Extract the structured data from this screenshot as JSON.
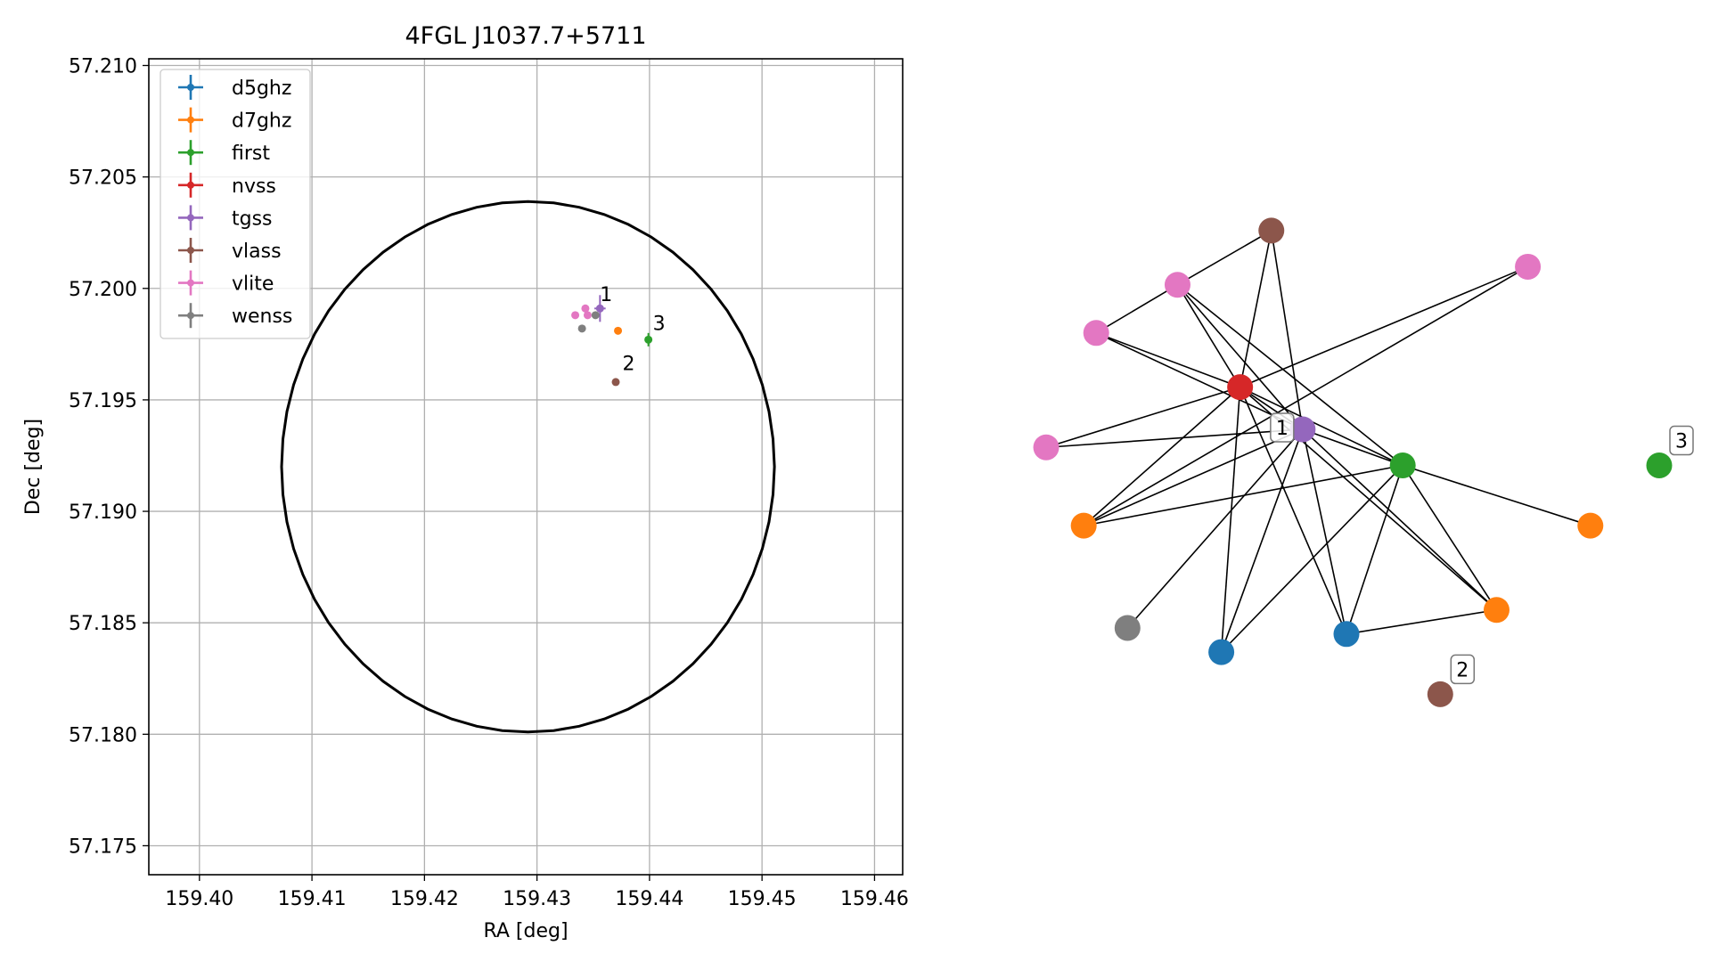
{
  "chart_data": [
    {
      "type": "scatter",
      "title": "4FGL J1037.7+5711",
      "xlabel": "RA [deg]",
      "ylabel": "Dec [deg]",
      "xlim": [
        159.3955,
        159.4625
      ],
      "ylim": [
        57.1737,
        57.2103
      ],
      "x_ticks": [
        "159.40",
        "159.41",
        "159.42",
        "159.43",
        "159.44",
        "159.45",
        "159.46"
      ],
      "y_ticks": [
        "57.175",
        "57.180",
        "57.185",
        "57.190",
        "57.195",
        "57.200",
        "57.205",
        "57.210"
      ],
      "grid": true,
      "legend_position": "upper-left",
      "colors": {
        "d5ghz": "#1f77b4",
        "d7ghz": "#ff7f0e",
        "first": "#2ca02c",
        "nvss": "#d62728",
        "tgss": "#9467bd",
        "vlass": "#8c564b",
        "vlite": "#e377c2",
        "wenss": "#7f7f7f"
      },
      "series": [
        {
          "name": "d5ghz",
          "points": []
        },
        {
          "name": "d7ghz",
          "points": [
            {
              "x": 159.4372,
              "y": 57.1981
            }
          ]
        },
        {
          "name": "first",
          "points": [
            {
              "x": 159.4399,
              "y": 57.1977,
              "yerr": 0.0003
            }
          ]
        },
        {
          "name": "nvss",
          "points": []
        },
        {
          "name": "tgss",
          "points": [
            {
              "x": 159.4356,
              "y": 57.1991,
              "xerr": 0.0005,
              "yerr": 0.0006
            }
          ]
        },
        {
          "name": "vlass",
          "points": [
            {
              "x": 159.437,
              "y": 57.1958
            }
          ]
        },
        {
          "name": "vlite",
          "points": [
            {
              "x": 159.4334,
              "y": 57.1988
            },
            {
              "x": 159.4343,
              "y": 57.1991
            },
            {
              "x": 159.4345,
              "y": 57.1988
            }
          ]
        },
        {
          "name": "wenss",
          "points": [
            {
              "x": 159.434,
              "y": 57.1982
            },
            {
              "x": 159.4352,
              "y": 57.1988
            }
          ]
        }
      ],
      "annotations": [
        {
          "text": "1",
          "x": 159.4352,
          "y": 57.1992
        },
        {
          "text": "2",
          "x": 159.4372,
          "y": 57.1961
        },
        {
          "text": "3",
          "x": 159.4399,
          "y": 57.1979
        }
      ],
      "ellipse": {
        "center_x": 159.4292,
        "center_y": 57.192,
        "half_width_ra": 0.0219,
        "half_height_dec": 0.0119
      }
    },
    {
      "type": "network",
      "nodes": [
        {
          "id": "brown_top",
          "group": "vlass",
          "x": 0.38,
          "y": 0.87
        },
        {
          "id": "pink_a",
          "group": "vlite",
          "x": 0.23,
          "y": 0.78
        },
        {
          "id": "pink_b",
          "group": "vlite",
          "x": 0.79,
          "y": 0.81
        },
        {
          "id": "pink_c",
          "group": "vlite",
          "x": 0.1,
          "y": 0.7
        },
        {
          "id": "pink_d",
          "group": "vlite",
          "x": 0.02,
          "y": 0.51
        },
        {
          "id": "nvss_hub",
          "group": "nvss",
          "x": 0.33,
          "y": 0.61
        },
        {
          "id": "tgss_hub",
          "group": "tgss",
          "x": 0.43,
          "y": 0.54
        },
        {
          "id": "first_a",
          "group": "first",
          "x": 0.59,
          "y": 0.48
        },
        {
          "id": "first_b",
          "group": "first",
          "x": 1.0,
          "y": 0.48
        },
        {
          "id": "orange_a",
          "group": "d7ghz",
          "x": 0.08,
          "y": 0.38
        },
        {
          "id": "orange_b",
          "group": "d7ghz",
          "x": 0.89,
          "y": 0.38
        },
        {
          "id": "orange_c",
          "group": "d7ghz",
          "x": 0.74,
          "y": 0.24
        },
        {
          "id": "grey_a",
          "group": "wenss",
          "x": 0.15,
          "y": 0.21
        },
        {
          "id": "blue_a",
          "group": "d5ghz",
          "x": 0.3,
          "y": 0.17
        },
        {
          "id": "blue_b",
          "group": "d5ghz",
          "x": 0.5,
          "y": 0.2
        },
        {
          "id": "brown_b",
          "group": "vlass",
          "x": 0.65,
          "y": 0.1
        }
      ],
      "edges": [
        [
          "brown_top",
          "pink_a"
        ],
        [
          "brown_top",
          "nvss_hub"
        ],
        [
          "brown_top",
          "tgss_hub"
        ],
        [
          "pink_a",
          "pink_c"
        ],
        [
          "pink_a",
          "nvss_hub"
        ],
        [
          "pink_a",
          "tgss_hub"
        ],
        [
          "pink_a",
          "first_a"
        ],
        [
          "pink_b",
          "nvss_hub"
        ],
        [
          "pink_b",
          "orange_a"
        ],
        [
          "pink_c",
          "nvss_hub"
        ],
        [
          "pink_c",
          "tgss_hub"
        ],
        [
          "pink_d",
          "nvss_hub"
        ],
        [
          "pink_d",
          "tgss_hub"
        ],
        [
          "nvss_hub",
          "tgss_hub"
        ],
        [
          "nvss_hub",
          "first_a"
        ],
        [
          "nvss_hub",
          "orange_c"
        ],
        [
          "nvss_hub",
          "blue_a"
        ],
        [
          "nvss_hub",
          "blue_b"
        ],
        [
          "nvss_hub",
          "orange_a"
        ],
        [
          "tgss_hub",
          "first_a"
        ],
        [
          "tgss_hub",
          "orange_c"
        ],
        [
          "tgss_hub",
          "orange_a"
        ],
        [
          "tgss_hub",
          "blue_a"
        ],
        [
          "tgss_hub",
          "blue_b"
        ],
        [
          "tgss_hub",
          "grey_a"
        ],
        [
          "first_a",
          "orange_b"
        ],
        [
          "first_a",
          "orange_c"
        ],
        [
          "first_a",
          "orange_a"
        ],
        [
          "first_a",
          "blue_a"
        ],
        [
          "first_a",
          "blue_b"
        ],
        [
          "orange_c",
          "blue_b"
        ]
      ],
      "labels": [
        {
          "text": "1",
          "node": "tgss_hub"
        },
        {
          "text": "2",
          "node": "brown_b"
        },
        {
          "text": "3",
          "node": "first_b"
        }
      ]
    }
  ]
}
